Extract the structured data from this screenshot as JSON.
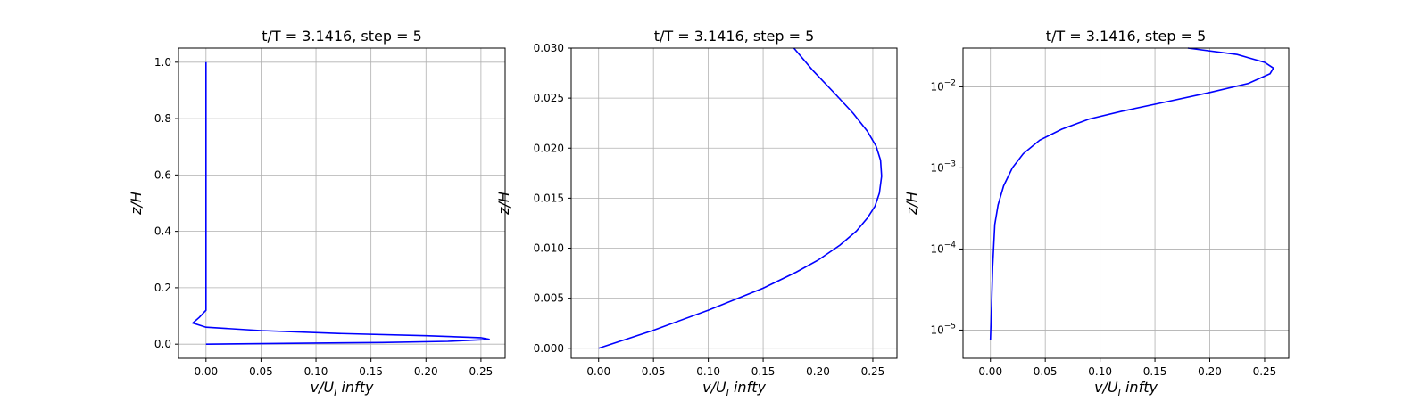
{
  "chart_data": [
    {
      "type": "line",
      "title": "t/T = 3.1416, step = 5",
      "xlabel": "v/U_I infty",
      "ylabel": "z/H",
      "xscale": "linear",
      "yscale": "linear",
      "xlim": [
        -0.025,
        0.272
      ],
      "ylim": [
        -0.05,
        1.05
      ],
      "xticks": [
        0.0,
        0.05,
        0.1,
        0.15,
        0.2,
        0.25
      ],
      "xtick_labels": [
        "0.00",
        "0.05",
        "0.10",
        "0.15",
        "0.20",
        "0.25"
      ],
      "yticks": [
        0.0,
        0.2,
        0.4,
        0.6,
        0.8,
        1.0
      ],
      "ytick_labels": [
        "0.0",
        "0.2",
        "0.4",
        "0.6",
        "0.8",
        "1.0"
      ],
      "grid": true,
      "series": [
        {
          "color": "#0000ff",
          "x": [
            0.0,
            0.08,
            0.16,
            0.22,
            0.258,
            0.25,
            0.2,
            0.12,
            0.05,
            0.0,
            -0.012,
            -0.006,
            0.0,
            0.0,
            0.0,
            0.0,
            0.0,
            0.0
          ],
          "y": [
            0.0,
            0.003,
            0.006,
            0.01,
            0.017,
            0.023,
            0.03,
            0.038,
            0.048,
            0.06,
            0.075,
            0.095,
            0.12,
            0.16,
            0.3,
            0.5,
            0.8,
            1.0
          ]
        }
      ]
    },
    {
      "type": "line",
      "title": "t/T = 3.1416, step = 5",
      "xlabel": "v/U_I infty",
      "ylabel": "z/H",
      "xscale": "linear",
      "yscale": "linear",
      "xlim": [
        -0.025,
        0.272
      ],
      "ylim": [
        -0.001,
        0.03
      ],
      "xticks": [
        0.0,
        0.05,
        0.1,
        0.15,
        0.2,
        0.25
      ],
      "xtick_labels": [
        "0.00",
        "0.05",
        "0.10",
        "0.15",
        "0.20",
        "0.25"
      ],
      "yticks": [
        0.0,
        0.005,
        0.01,
        0.015,
        0.02,
        0.025,
        0.03
      ],
      "ytick_labels": [
        "0.000",
        "0.005",
        "0.010",
        "0.015",
        "0.020",
        "0.025",
        "0.030"
      ],
      "grid": true,
      "series": [
        {
          "color": "#0000ff",
          "x": [
            0.0,
            0.05,
            0.1,
            0.15,
            0.18,
            0.2,
            0.22,
            0.235,
            0.245,
            0.252,
            0.256,
            0.258,
            0.257,
            0.253,
            0.245,
            0.232,
            0.215,
            0.195,
            0.178
          ],
          "y": [
            0.0,
            0.0018,
            0.0038,
            0.006,
            0.0076,
            0.0088,
            0.0103,
            0.0117,
            0.013,
            0.0142,
            0.0155,
            0.0172,
            0.0188,
            0.0202,
            0.0217,
            0.0235,
            0.0255,
            0.0278,
            0.03
          ]
        }
      ]
    },
    {
      "type": "line",
      "title": "t/T = 3.1416, step = 5",
      "xlabel": "v/U_I infty",
      "ylabel": "z/H",
      "xscale": "linear",
      "yscale": "log",
      "xlim": [
        -0.025,
        0.272
      ],
      "ylim": [
        4.5e-06,
        0.03
      ],
      "xticks": [
        0.0,
        0.05,
        0.1,
        0.15,
        0.2,
        0.25
      ],
      "xtick_labels": [
        "0.00",
        "0.05",
        "0.10",
        "0.15",
        "0.20",
        "0.25"
      ],
      "yticks": [
        1e-05,
        0.0001,
        0.001,
        0.01
      ],
      "ytick_labels": [
        "10",
        "10",
        "10",
        "10"
      ],
      "ytick_exponents": [
        "-5",
        "-4",
        "-3",
        "-2"
      ],
      "grid": true,
      "series": [
        {
          "color": "#0000ff",
          "x": [
            0.0,
            0.001,
            0.002,
            0.004,
            0.007,
            0.012,
            0.02,
            0.03,
            0.045,
            0.065,
            0.09,
            0.12,
            0.16,
            0.2,
            0.235,
            0.255,
            0.258,
            0.25,
            0.225,
            0.18
          ],
          "y": [
            7.5e-06,
            2e-05,
            6e-05,
            0.0002,
            0.00035,
            0.0006,
            0.001,
            0.0015,
            0.0022,
            0.003,
            0.004,
            0.005,
            0.0065,
            0.0085,
            0.011,
            0.0145,
            0.017,
            0.02,
            0.025,
            0.03
          ]
        }
      ]
    }
  ]
}
